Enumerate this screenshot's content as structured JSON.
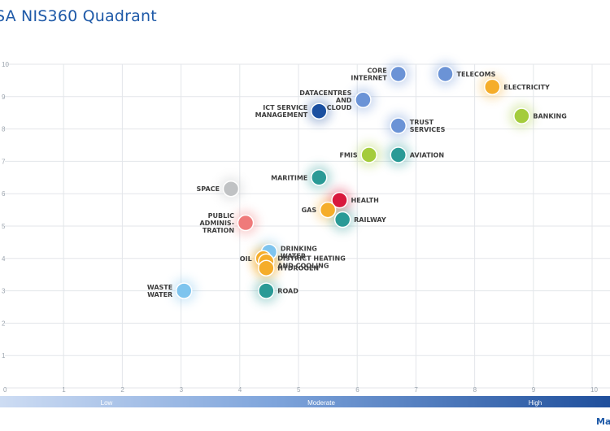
{
  "title": "SA NIS360 Quadrant",
  "chart_data": {
    "type": "scatter",
    "title": "SA NIS360 Quadrant",
    "xlim": [
      0,
      10
    ],
    "ylim": [
      0,
      10
    ],
    "x_ticks": [
      0,
      1,
      2,
      3,
      4,
      5,
      6,
      7,
      8,
      9,
      10
    ],
    "y_ticks": [
      1,
      2,
      3,
      4,
      5,
      6,
      7,
      8,
      9,
      10
    ],
    "grid": true,
    "bottom_scale": {
      "labels": [
        "Low",
        "Moderate",
        "High"
      ],
      "corner_label": "Ma"
    },
    "points": [
      {
        "name": [
          "CORE",
          "INTERNET"
        ],
        "x": 6.7,
        "y": 9.7,
        "color": "#6b93d6",
        "side": "left"
      },
      {
        "name": [
          "TELECOMS"
        ],
        "x": 7.5,
        "y": 9.7,
        "color": "#6b93d6",
        "side": "right"
      },
      {
        "name": [
          "ELECTRICITY"
        ],
        "x": 8.3,
        "y": 9.3,
        "color": "#f5ad2a",
        "side": "right"
      },
      {
        "name": [
          "DATACENTRES",
          "AND",
          "CLOUD"
        ],
        "x": 6.1,
        "y": 8.9,
        "color": "#6b93d6",
        "side": "left"
      },
      {
        "name": [
          "ICT SERVICE",
          "MANAGEMENT"
        ],
        "x": 5.35,
        "y": 8.55,
        "color": "#1a4fa0",
        "side": "left"
      },
      {
        "name": [
          "BANKING"
        ],
        "x": 8.8,
        "y": 8.4,
        "color": "#a4cc3c",
        "side": "right"
      },
      {
        "name": [
          "TRUST",
          "SERVICES"
        ],
        "x": 6.7,
        "y": 8.1,
        "color": "#6b93d6",
        "side": "right"
      },
      {
        "name": [
          "FMIS"
        ],
        "x": 6.2,
        "y": 7.2,
        "color": "#a4cc3c",
        "side": "left"
      },
      {
        "name": [
          "AVIATION"
        ],
        "x": 6.7,
        "y": 7.2,
        "color": "#2a9a96",
        "side": "right"
      },
      {
        "name": [
          "MARITIME"
        ],
        "x": 5.35,
        "y": 6.5,
        "color": "#2a9a96",
        "side": "left"
      },
      {
        "name": [
          "SPACE"
        ],
        "x": 3.85,
        "y": 6.15,
        "color": "#c0c2c4",
        "side": "left"
      },
      {
        "name": [
          "HEALTH"
        ],
        "x": 5.7,
        "y": 5.8,
        "color": "#d8183c",
        "side": "right"
      },
      {
        "name": [
          "GAS"
        ],
        "x": 5.5,
        "y": 5.5,
        "color": "#f5ad2a",
        "side": "left"
      },
      {
        "name": [
          "RAILWAY"
        ],
        "x": 5.75,
        "y": 5.2,
        "color": "#2a9a96",
        "side": "right"
      },
      {
        "name": [
          "PUBLIC",
          "ADMINIS-",
          "TRATION"
        ],
        "x": 4.1,
        "y": 5.1,
        "color": "#ef7a7a",
        "side": "left"
      },
      {
        "name": [
          "DRINKING",
          "WATER"
        ],
        "x": 4.5,
        "y": 4.2,
        "color": "#7ec4ee",
        "side": "right"
      },
      {
        "name": [
          "OIL"
        ],
        "x": 4.4,
        "y": 4.0,
        "color": "#f5ad2a",
        "side": "left"
      },
      {
        "name": [
          "DISTRICT HEATING",
          "AND COOLING"
        ],
        "x": 4.45,
        "y": 3.9,
        "color": "#f5ad2a",
        "side": "right"
      },
      {
        "name": [
          "HYDROGEN"
        ],
        "x": 4.45,
        "y": 3.7,
        "color": "#f5ad2a",
        "side": "right"
      },
      {
        "name": [
          "WASTE",
          "WATER"
        ],
        "x": 3.05,
        "y": 3.0,
        "color": "#7ec4ee",
        "side": "left"
      },
      {
        "name": [
          "ROAD"
        ],
        "x": 4.45,
        "y": 3.0,
        "color": "#2a9a96",
        "side": "right"
      }
    ]
  }
}
